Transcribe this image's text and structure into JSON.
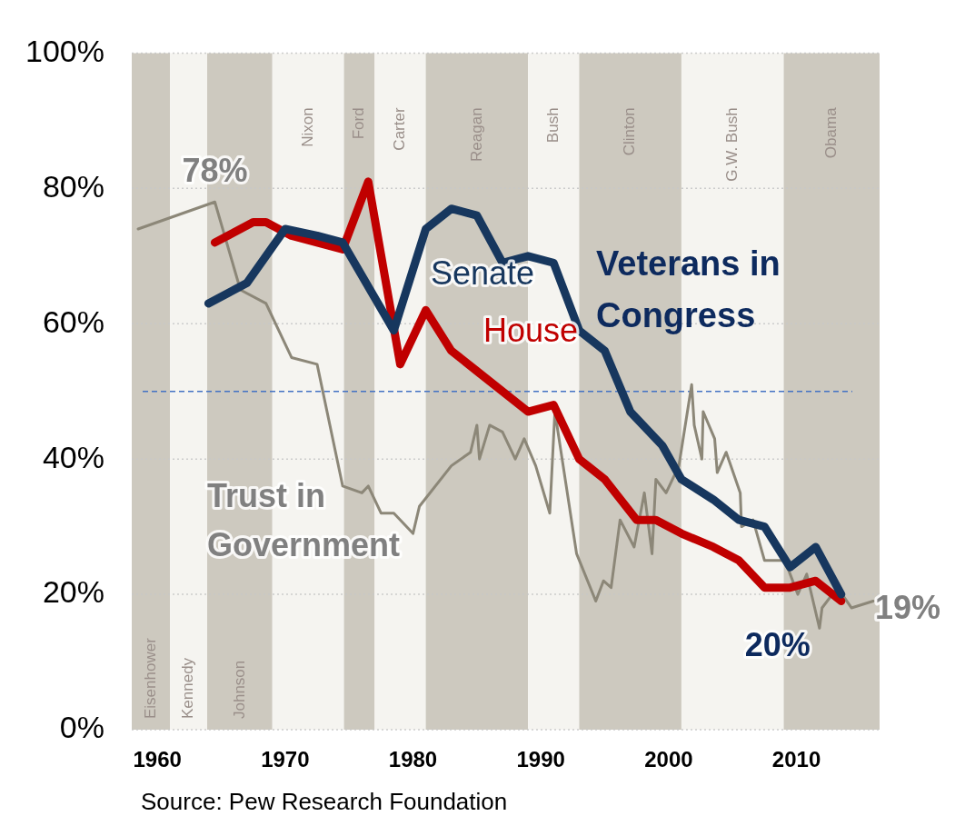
{
  "chart_data": {
    "type": "line",
    "xlim": [
      1958,
      2016.5
    ],
    "xticks": [
      1960,
      1970,
      1980,
      1990,
      2000,
      2010
    ],
    "ylim": [
      0,
      100
    ],
    "yticks": [
      {
        "value": 0,
        "label": "0%"
      },
      {
        "value": 20,
        "label": "20%"
      },
      {
        "value": 40,
        "label": "40%"
      },
      {
        "value": 60,
        "label": "60%"
      },
      {
        "value": 80,
        "label": "80%"
      },
      {
        "value": 100,
        "label": "100%"
      }
    ],
    "grid": "y",
    "legend": false,
    "series": [
      {
        "name": "Senate",
        "color": "#17375e",
        "x": [
          1964,
          1967,
          1970,
          1972.5,
          1974.5,
          1978.5,
          1981,
          1983,
          1985,
          1987,
          1989,
          1991,
          1993,
          1995,
          1997,
          1999.5,
          2001,
          2003.5,
          2005.5,
          2007.5,
          2009.5,
          2011.5,
          2013.5
        ],
        "values": [
          63,
          66,
          74,
          73,
          72,
          59,
          74,
          77,
          76,
          69,
          70,
          69,
          59,
          56,
          47,
          42,
          37,
          34,
          31,
          30,
          24,
          27,
          20
        ]
      },
      {
        "name": "House",
        "color": "#c00000",
        "x": [
          1964.5,
          1967.5,
          1968.5,
          1970.5,
          1972.5,
          1974.5,
          1976.5,
          1979,
          1981,
          1983,
          1985,
          1989,
          1991,
          1993,
          1995,
          1997.5,
          1999,
          2001,
          2003.5,
          2005.5,
          2007.5,
          2009.5,
          2011.5,
          2013.5
        ],
        "values": [
          72,
          75,
          75,
          73,
          72,
          71,
          81,
          54,
          62,
          56,
          53,
          47,
          48,
          40,
          37,
          31,
          31,
          29,
          27,
          25,
          21,
          21,
          22,
          19
        ]
      },
      {
        "name": "Trust in Government",
        "color": "#8c8778",
        "x": [
          1958.5,
          1964.5,
          1966.5,
          1968.5,
          1970.5,
          1972.5,
          1974.5,
          1976,
          1976.5,
          1977.5,
          1978.5,
          1980,
          1980.5,
          1983,
          1984.5,
          1985,
          1985.2,
          1986,
          1987,
          1988,
          1988.7,
          1989.6,
          1990.7,
          1991.1,
          1992.8,
          1994.3,
          1994.9,
          1995.5,
          1996.2,
          1997.3,
          1998.1,
          1998.7,
          1999,
          1999.8,
          2000.8,
          2001.8,
          2002,
          2002.6,
          2002.7,
          2003.6,
          2003.8,
          2004.5,
          2005.6,
          2005.7,
          2006.6,
          2007.5,
          2009.1,
          2010.1,
          2010.8,
          2011.8,
          2012,
          2013.2,
          2014.3,
          2016
        ],
        "values": [
          74,
          78,
          65,
          63,
          55,
          54,
          36,
          35,
          36,
          32,
          32,
          29,
          33,
          39,
          41,
          45,
          40,
          45,
          44,
          40,
          43,
          39,
          32,
          47,
          26,
          19,
          22,
          21,
          31,
          27,
          35,
          26,
          37,
          35,
          39,
          51,
          45,
          40,
          47,
          43,
          38,
          41,
          35,
          30,
          31,
          25,
          25,
          20,
          23,
          15,
          18,
          21,
          18,
          19
        ]
      }
    ],
    "ref_lines": [
      {
        "axis": "y",
        "value": 50,
        "color": "#4472c4",
        "line_style": "dashed"
      }
    ],
    "bands": [
      {
        "axis": "x",
        "from": 1958,
        "to": 1961,
        "label": "Eisenhower",
        "color": "#cdc9bf"
      },
      {
        "axis": "x",
        "from": 1961,
        "to": 1963.9,
        "label": "Kennedy",
        "color": "#f5f4f0"
      },
      {
        "axis": "x",
        "from": 1963.9,
        "to": 1969,
        "label": "Johnson",
        "color": "#cdc9bf"
      },
      {
        "axis": "x",
        "from": 1969,
        "to": 1974.6,
        "label": "Nixon",
        "color": "#f5f4f0"
      },
      {
        "axis": "x",
        "from": 1974.6,
        "to": 1977,
        "label": "Ford",
        "color": "#cdc9bf"
      },
      {
        "axis": "x",
        "from": 1977,
        "to": 1981,
        "label": "Carter",
        "color": "#f5f4f0"
      },
      {
        "axis": "x",
        "from": 1981,
        "to": 1989,
        "label": "Reagan",
        "color": "#cdc9bf"
      },
      {
        "axis": "x",
        "from": 1989,
        "to": 1993,
        "label": "Bush",
        "color": "#f5f4f0"
      },
      {
        "axis": "x",
        "from": 1993,
        "to": 2001,
        "label": "Clinton",
        "color": "#cdc9bf"
      },
      {
        "axis": "x",
        "from": 2001,
        "to": 2009,
        "label": "G.W. Bush",
        "color": "#f5f4f0"
      },
      {
        "axis": "x",
        "from": 2009,
        "to": 2016.5,
        "label": "Obama",
        "color": "#cdc9bf"
      }
    ],
    "annotations": [
      "Veterans in Congress",
      {
        "text": "78%",
        "x": 1964.5,
        "y": 78
      },
      {
        "text": "20%",
        "x": 2013.5,
        "y": 20
      },
      {
        "text": "19%",
        "x": 2016,
        "y": 19
      },
      "Source: Pew Research Foundation"
    ]
  }
}
